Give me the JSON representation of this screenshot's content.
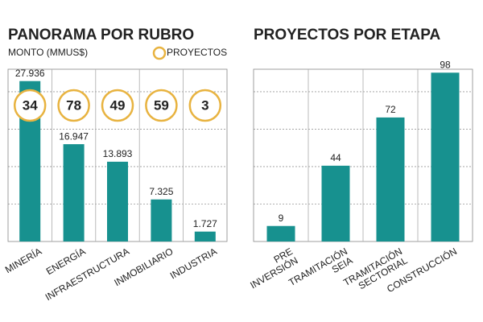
{
  "chart_data": [
    {
      "type": "bar",
      "title": "PANORAMA POR RUBRO",
      "subtitle": "MONTO (MMUS$)",
      "categories": [
        [
          "MINERÍA"
        ],
        [
          "ENERGÍA"
        ],
        [
          "INFRAESTRUCTURA"
        ],
        [
          "INMOBILIARIO"
        ],
        [
          "INDUSTRIA"
        ]
      ],
      "values": [
        27936,
        16947,
        13893,
        7325,
        1727
      ],
      "value_labels": [
        "27.936",
        "16.947",
        "13.893",
        "7.325",
        "1.727"
      ],
      "color": "#17918f",
      "ylim": [
        0,
        30000
      ],
      "grid": true,
      "markers": {
        "name": "PROYECTOS",
        "color": "#e8b340",
        "values": [
          34,
          78,
          49,
          59,
          3
        ]
      }
    },
    {
      "type": "bar",
      "title": "PROYECTOS POR ETAPA",
      "categories": [
        [
          "PRE",
          "INVERSIÓN"
        ],
        [
          "TRAMITACIÓN",
          "SEIA"
        ],
        [
          "TRAMITACIÓN",
          "SECTORIAL"
        ],
        [
          "CONSTRUCCIÓN"
        ]
      ],
      "values": [
        9,
        44,
        72,
        98
      ],
      "color": "#17918f",
      "ylim": [
        0,
        100
      ],
      "grid": true
    }
  ]
}
